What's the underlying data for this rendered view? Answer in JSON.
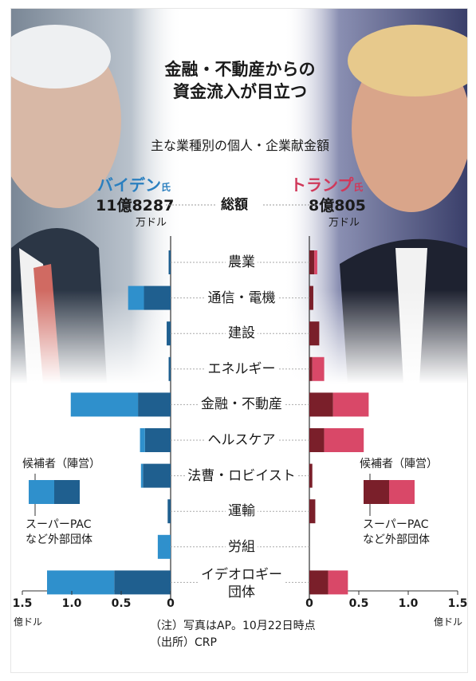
{
  "chart_data": {
    "type": "bar",
    "title": "金融・不動産からの資金流入が目立つ",
    "subtitle": "主な業種別の個人・企業献金額",
    "candidates": {
      "left": {
        "name": "バイデン",
        "suffix": "氏",
        "total_label": "11億8287",
        "total_unit": "万ドル",
        "color_candidate": "#1f5f8f",
        "color_pac": "#2f90cc"
      },
      "right": {
        "name": "トランプ",
        "suffix": "氏",
        "total_label": "8億805",
        "total_unit": "万ドル",
        "color_candidate": "#7a1f2a",
        "color_pac": "#d94868"
      }
    },
    "total_label": "総額",
    "categories": [
      "農業",
      "通信・電機",
      "建設",
      "エネルギー",
      "金融・不動産",
      "ヘルスケア",
      "法曹・ロビイスト",
      "運輸",
      "労組",
      "イデオロギー団体"
    ],
    "category_display": [
      "農業",
      "通信・電機",
      "建設",
      "エネルギー",
      "金融・不動産",
      "ヘルスケア",
      "法曹・ロビイスト",
      "運輸",
      "労組",
      "イデオロギー\n団体"
    ],
    "series": [
      {
        "name": "バイデン 候補者（陣営）",
        "values": [
          0.02,
          0.27,
          0.04,
          0.02,
          0.33,
          0.26,
          0.28,
          0.03,
          0.0,
          0.57
        ]
      },
      {
        "name": "バイデン スーパーPACなど外部団体",
        "values": [
          0.0,
          0.16,
          0.0,
          0.0,
          0.68,
          0.05,
          0.02,
          0.0,
          0.13,
          0.68
        ]
      },
      {
        "name": "トランプ 候補者（陣営）",
        "values": [
          0.05,
          0.04,
          0.1,
          0.03,
          0.24,
          0.15,
          0.03,
          0.06,
          0.0,
          0.19
        ]
      },
      {
        "name": "トランプ スーパーPACなど外部団体",
        "values": [
          0.03,
          0.0,
          0.0,
          0.12,
          0.36,
          0.4,
          0.0,
          0.0,
          0.0,
          0.2
        ]
      }
    ],
    "xlim": [
      0,
      1.5
    ],
    "ticks": [
      "1.5",
      "1.0",
      "0.5",
      "0"
    ],
    "ticks_right": [
      "0",
      "0.5",
      "1.0",
      "1.5"
    ],
    "unit": "億ドル",
    "legend": {
      "candidate": "候補者（陣営）",
      "pac_line1": "スーパーPAC",
      "pac_line2": "など外部団体"
    },
    "note": "（注）写真はAP。10月22日時点",
    "source": "（出所）CRP"
  }
}
